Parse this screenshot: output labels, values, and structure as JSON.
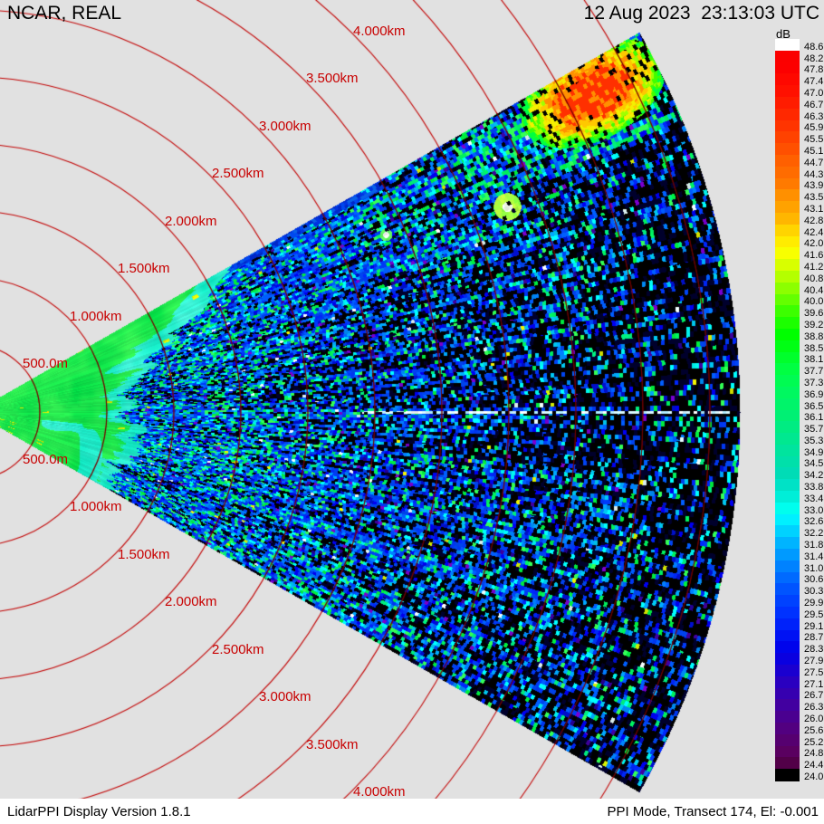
{
  "header": {
    "station_label": "NCAR, REAL",
    "timestamp": "12 Aug 2023  23:13:03 UTC"
  },
  "footer": {
    "version_text": "LidarPPI Display Version 1.8.1",
    "mode_text": "PPI Mode, Transect 174, El: -0.001"
  },
  "colorbar": {
    "title": "dB",
    "labels": [
      "48.6",
      "48.2",
      "47.8",
      "47.4",
      "47.0",
      "46.7",
      "46.3",
      "45.9",
      "45.5",
      "45.1",
      "44.7",
      "44.3",
      "43.9",
      "43.5",
      "43.1",
      "42.8",
      "42.4",
      "42.0",
      "41.6",
      "41.2",
      "40.8",
      "40.4",
      "40.0",
      "39.6",
      "39.2",
      "38.8",
      "38.5",
      "38.1",
      "37.7",
      "37.3",
      "36.9",
      "36.5",
      "36.1",
      "35.7",
      "35.3",
      "34.9",
      "34.5",
      "34.2",
      "33.8",
      "33.4",
      "33.0",
      "32.6",
      "32.2",
      "31.8",
      "31.4",
      "31.0",
      "30.6",
      "30.3",
      "29.9",
      "29.5",
      "29.1",
      "28.7",
      "28.3",
      "27.9",
      "27.5",
      "27.1",
      "26.7",
      "26.3",
      "26.0",
      "25.6",
      "25.2",
      "24.8",
      "24.4",
      "24.0"
    ],
    "colors": [
      "#ffffff",
      "#fb0000",
      "#fc0000",
      "#fe0800",
      "#ff1000",
      "#ff1c00",
      "#ff2800",
      "#ff3400",
      "#ff4200",
      "#ff5000",
      "#ff6000",
      "#ff6c00",
      "#ff7a00",
      "#ff9000",
      "#ffa200",
      "#ffb600",
      "#ffd400",
      "#ffec00",
      "#f8ff00",
      "#d8ff00",
      "#b4ff00",
      "#8cff00",
      "#64ff00",
      "#3cff00",
      "#1cff00",
      "#00ff00",
      "#00ff14",
      "#00ff2c",
      "#00ff42",
      "#00fc52",
      "#00f860",
      "#00f46a",
      "#00f074",
      "#00ec82",
      "#00e890",
      "#00e49e",
      "#00e0aa",
      "#00dcb6",
      "#00e2c6",
      "#00eed8",
      "#00feee",
      "#00f0ff",
      "#00d2ff",
      "#00b4ff",
      "#009aff",
      "#0082ff",
      "#006aff",
      "#0054ff",
      "#0042ff",
      "#0032ff",
      "#0022fa",
      "#0012f4",
      "#0004ec",
      "#0a00e0",
      "#1a00d0",
      "#2a00c0",
      "#3600b0",
      "#4200a0",
      "#4a0090",
      "#520080",
      "#560070",
      "#5a0060",
      "#520048",
      "#000000"
    ]
  },
  "range_rings": {
    "labels": [
      "500.0m",
      "1.000km",
      "1.500km",
      "2.000km",
      "2.500km",
      "3.000km",
      "3.500km",
      "4.000km"
    ],
    "label_color": "#c80000",
    "line_color": "#c20000"
  },
  "colors": {
    "background": "#e1e1e1",
    "footer_background": "#ffffff"
  }
}
